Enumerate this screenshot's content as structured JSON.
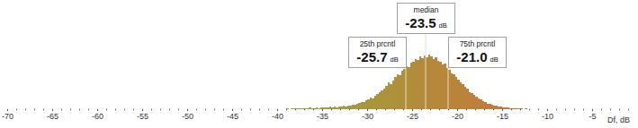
{
  "chart_data": {
    "type": "histogram",
    "x_label": "Df, dB",
    "bins": [
      -39,
      -38.75,
      -38.5,
      -38.25,
      -38,
      -37.75,
      -37.5,
      -37.25,
      -37,
      -36.75,
      -36.5,
      -36.25,
      -36,
      -35.75,
      -35.5,
      -35.25,
      -35,
      -34.75,
      -34.5,
      -34.25,
      -34,
      -33.75,
      -33.5,
      -33.25,
      -33,
      -32.75,
      -32.5,
      -32.25,
      -32,
      -31.75,
      -31.5,
      -31.25,
      -31,
      -30.75,
      -30.5,
      -30.25,
      -30,
      -29.75,
      -29.5,
      -29.25,
      -29,
      -28.75,
      -28.5,
      -28.25,
      -28,
      -27.75,
      -27.5,
      -27.25,
      -27,
      -26.75,
      -26.5,
      -26.25,
      -26,
      -25.75,
      -25.5,
      -25.25,
      -25,
      -24.75,
      -24.5,
      -24.25,
      -24,
      -23.75,
      -23.5,
      -23.25,
      -23,
      -22.75,
      -22.5,
      -22.25,
      -22,
      -21.75,
      -21.5,
      -21.25,
      -21,
      -20.75,
      -20.5,
      -20.25,
      -20,
      -19.75,
      -19.5,
      -19.25,
      -19,
      -18.75,
      -18.5,
      -18.25,
      -18,
      -17.75,
      -17.5,
      -17.25,
      -17,
      -16.75,
      -16.5,
      -16.25,
      -16,
      -15.75,
      -15.5,
      -15.25,
      -15,
      -14.75,
      -14.5,
      -14.25,
      -14,
      -13.75,
      -13.5,
      -13.25,
      -13,
      -12.75,
      -12.5,
      -12.25,
      -12
    ],
    "values": [
      1,
      0,
      2,
      1,
      1,
      2,
      1,
      2,
      2,
      1,
      3,
      2,
      2,
      3,
      2,
      4,
      3,
      4,
      3,
      5,
      4,
      5,
      4,
      6,
      5,
      7,
      6,
      8,
      8,
      10,
      9,
      12,
      13,
      15,
      14,
      18,
      20,
      24,
      23,
      28,
      32,
      36,
      39,
      42,
      48,
      55,
      52,
      60,
      66,
      72,
      70,
      80,
      84,
      90,
      88,
      97,
      98,
      104,
      102,
      110,
      106,
      112,
      108,
      114,
      110,
      104,
      108,
      100,
      98,
      92,
      95,
      86,
      82,
      74,
      72,
      66,
      62,
      55,
      52,
      47,
      42,
      36,
      34,
      30,
      26,
      22,
      20,
      17,
      15,
      12,
      11,
      9,
      8,
      7,
      5,
      6,
      4,
      3,
      3,
      2,
      2,
      2,
      1,
      1,
      1,
      0,
      1,
      0
    ],
    "xlim": [
      -70.5,
      -0.5
    ],
    "xticks": [
      -70,
      -65,
      -60,
      -55,
      -50,
      -45,
      -40,
      -35,
      -30,
      -25,
      -20,
      -15,
      -10,
      -5
    ],
    "ylim": [
      0,
      130
    ],
    "tick_labels": "x",
    "annotations": [
      {
        "text": "25th prcntl",
        "value": -25.7,
        "label": "-25.7",
        "unit": "dB"
      },
      {
        "text": "median",
        "value": -23.5,
        "label": "-23.5",
        "unit": "dB"
      },
      {
        "text": "75th prcntl",
        "value": -21.0,
        "label": "-21.0",
        "unit": "dB"
      }
    ]
  }
}
